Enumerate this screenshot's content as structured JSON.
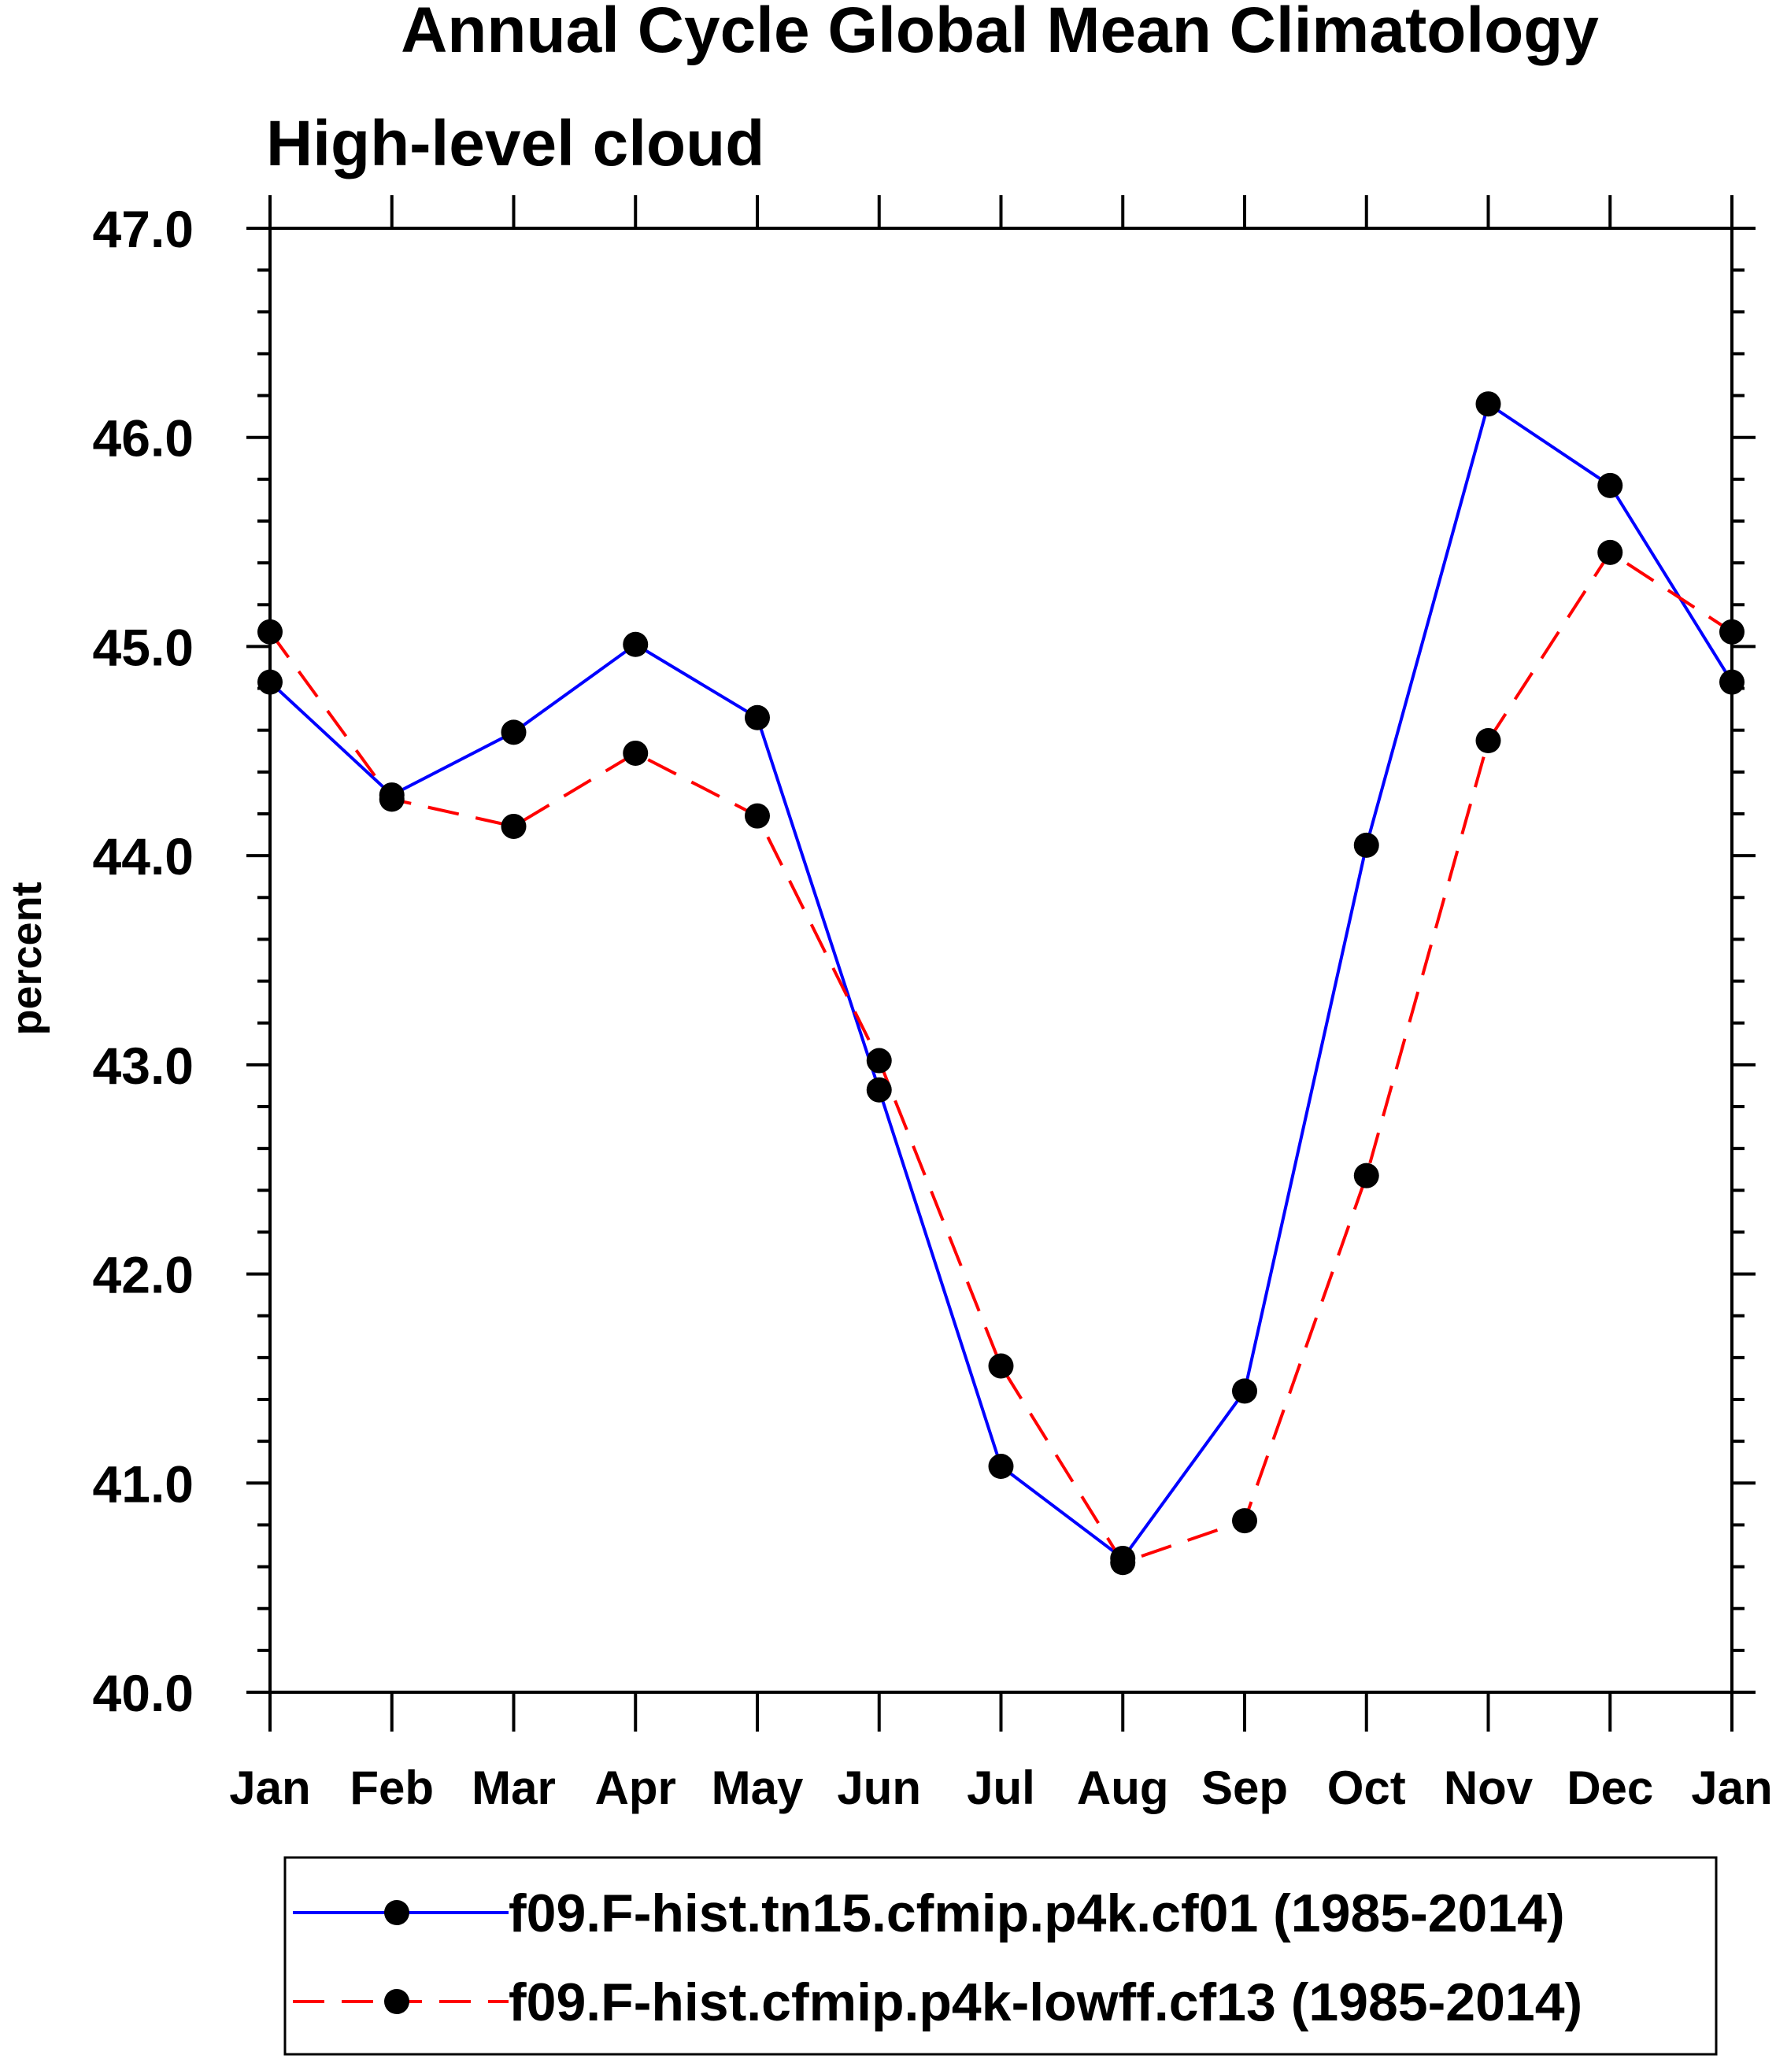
{
  "chart_data": {
    "type": "line",
    "title": "Annual Cycle Global Mean Climatology",
    "subtitle": "High-level cloud",
    "xlabel": "",
    "ylabel": "percent",
    "categories": [
      "Jan",
      "Feb",
      "Mar",
      "Apr",
      "May",
      "Jun",
      "Jul",
      "Aug",
      "Sep",
      "Oct",
      "Nov",
      "Dec",
      "Jan"
    ],
    "ylim": [
      40.0,
      47.0
    ],
    "yticks": [
      "40.0",
      "41.0",
      "42.0",
      "43.0",
      "44.0",
      "45.0",
      "46.0",
      "47.0"
    ],
    "grid": false,
    "legend_position": "bottom",
    "series": [
      {
        "name": "f09.F-hist.tn15.cfmip.p4k.cf01 (1985-2014)",
        "color": "#0000ff",
        "line_style": "solid",
        "marker": "filled-circle",
        "values": [
          44.83,
          44.29,
          44.59,
          45.01,
          44.66,
          42.88,
          41.08,
          40.64,
          41.44,
          44.05,
          46.16,
          45.77,
          44.83
        ]
      },
      {
        "name": "f09.F-hist.cfmip.p4k-lowff.cf13 (1985-2014)",
        "color": "#ff0000",
        "line_style": "dashed",
        "marker": "filled-circle",
        "values": [
          45.07,
          44.27,
          44.14,
          44.49,
          44.19,
          43.02,
          41.56,
          40.62,
          40.82,
          42.47,
          44.55,
          45.45,
          45.07
        ]
      }
    ]
  }
}
